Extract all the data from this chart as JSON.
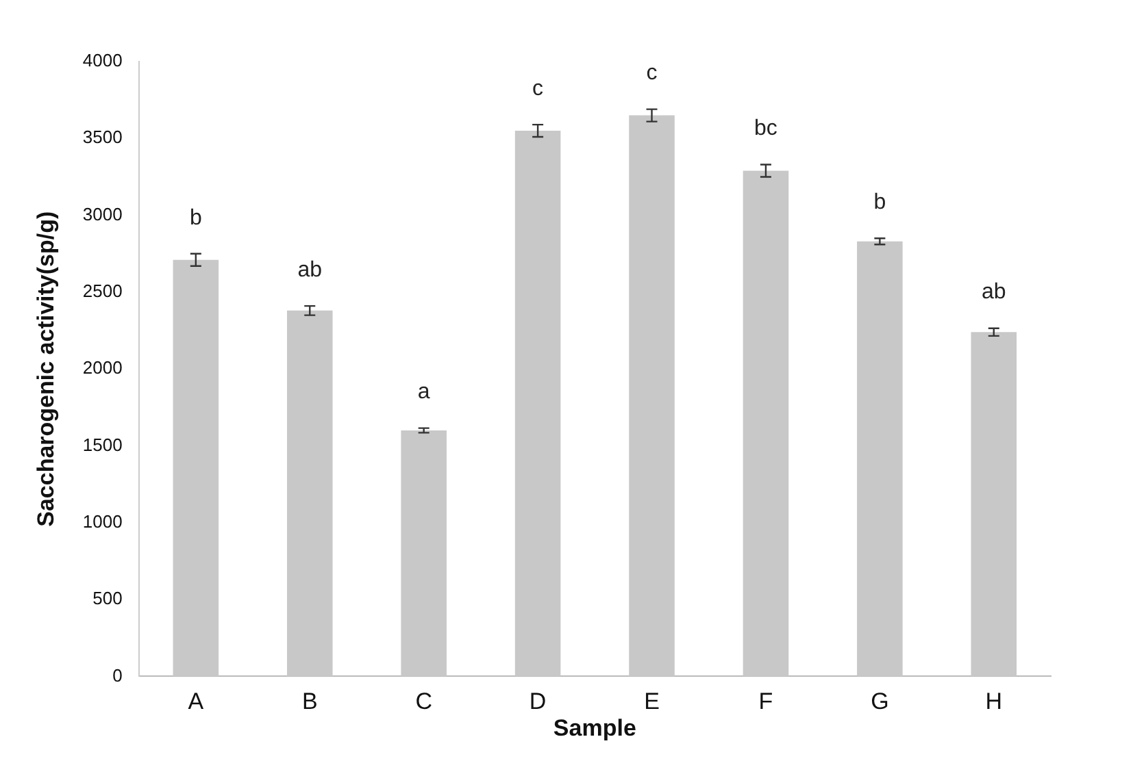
{
  "chart_data": {
    "type": "bar",
    "xlabel": "Sample",
    "ylabel": "Saccharogenic activity(sp/g)",
    "categories": [
      "A",
      "B",
      "C",
      "D",
      "E",
      "F",
      "G",
      "H"
    ],
    "values": [
      2710,
      2380,
      1600,
      3550,
      3650,
      3290,
      2830,
      2240
    ],
    "errors": [
      40,
      30,
      15,
      40,
      40,
      40,
      20,
      25
    ],
    "color": "#c8c8c8",
    "ylim": [
      0,
      4000
    ],
    "yticks": [
      0,
      500,
      1000,
      1500,
      2000,
      2500,
      3000,
      3500,
      4000
    ],
    "annotations": [
      "b",
      "ab",
      "a",
      "c",
      "c",
      "bc",
      "b",
      "ab"
    ]
  }
}
